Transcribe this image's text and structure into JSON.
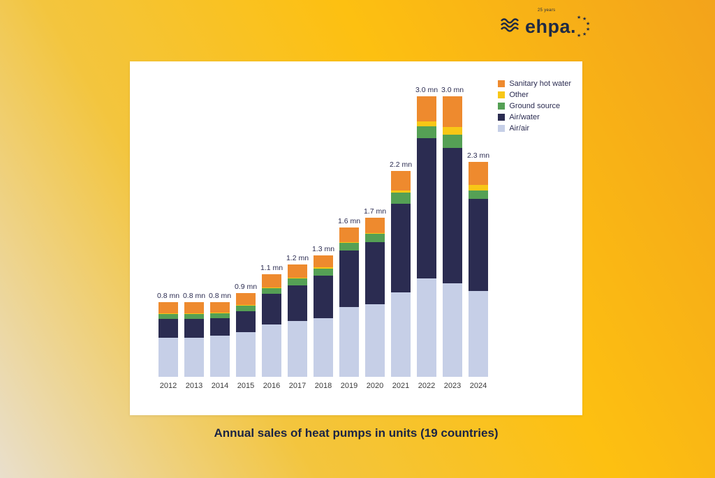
{
  "logo": {
    "brand": "ehpa.",
    "anniversary": "25 years"
  },
  "page": {
    "caption": "Annual sales of heat pumps in units (19 countries)"
  },
  "colors": {
    "background_gold": "#fdc011",
    "background_beige": "#e9dfcc",
    "background_orange": "#f3a31b",
    "card": "#ffffff",
    "navy_text": "#1b2444"
  },
  "chart_data": {
    "type": "bar",
    "stacked": true,
    "title": "Annual sales of heat pumps in units (19 countries)",
    "xlabel": "",
    "ylabel": "",
    "ylim": [
      0,
      3.2
    ],
    "grid": false,
    "legend_position": "top-right",
    "unit": "mn units",
    "categories": [
      "2012",
      "2013",
      "2014",
      "2015",
      "2016",
      "2017",
      "2018",
      "2019",
      "2020",
      "2021",
      "2022",
      "2023",
      "2024"
    ],
    "series": [
      {
        "name": "Air/air",
        "color": "#c6cfe7",
        "values": [
          0.42,
          0.42,
          0.44,
          0.48,
          0.56,
          0.6,
          0.63,
          0.75,
          0.78,
          0.9,
          1.05,
          1.0,
          0.92
        ]
      },
      {
        "name": "Air/water",
        "color": "#2b2c51",
        "values": [
          0.2,
          0.2,
          0.19,
          0.22,
          0.33,
          0.38,
          0.45,
          0.6,
          0.66,
          0.95,
          1.5,
          1.45,
          0.98
        ]
      },
      {
        "name": "Ground source",
        "color": "#55a055",
        "values": [
          0.05,
          0.05,
          0.05,
          0.06,
          0.06,
          0.07,
          0.08,
          0.08,
          0.09,
          0.12,
          0.13,
          0.14,
          0.09
        ]
      },
      {
        "name": "Other",
        "color": "#f8c716",
        "values": [
          0.01,
          0.01,
          0.01,
          0.01,
          0.01,
          0.01,
          0.01,
          0.01,
          0.01,
          0.02,
          0.05,
          0.08,
          0.06
        ]
      },
      {
        "name": "Sanitary hot water",
        "color": "#ee8a2e",
        "values": [
          0.12,
          0.12,
          0.11,
          0.13,
          0.14,
          0.14,
          0.13,
          0.16,
          0.16,
          0.21,
          0.27,
          0.33,
          0.25
        ]
      }
    ],
    "totals": [
      0.8,
      0.8,
      0.8,
      0.9,
      1.1,
      1.2,
      1.3,
      1.6,
      1.7,
      2.2,
      3.0,
      3.0,
      2.3
    ],
    "totals_labels": [
      "0.8 mn",
      "0.8 mn",
      "0.8 mn",
      "0.9 mn",
      "1.1 mn",
      "1.2 mn",
      "1.3 mn",
      "1.6 mn",
      "1.7 mn",
      "2.2 mn",
      "3.0 mn",
      "3.0 mn",
      "2.3 mn"
    ],
    "legend": [
      "Sanitary hot water",
      "Other",
      "Ground source",
      "Air/water",
      "Air/air"
    ]
  }
}
